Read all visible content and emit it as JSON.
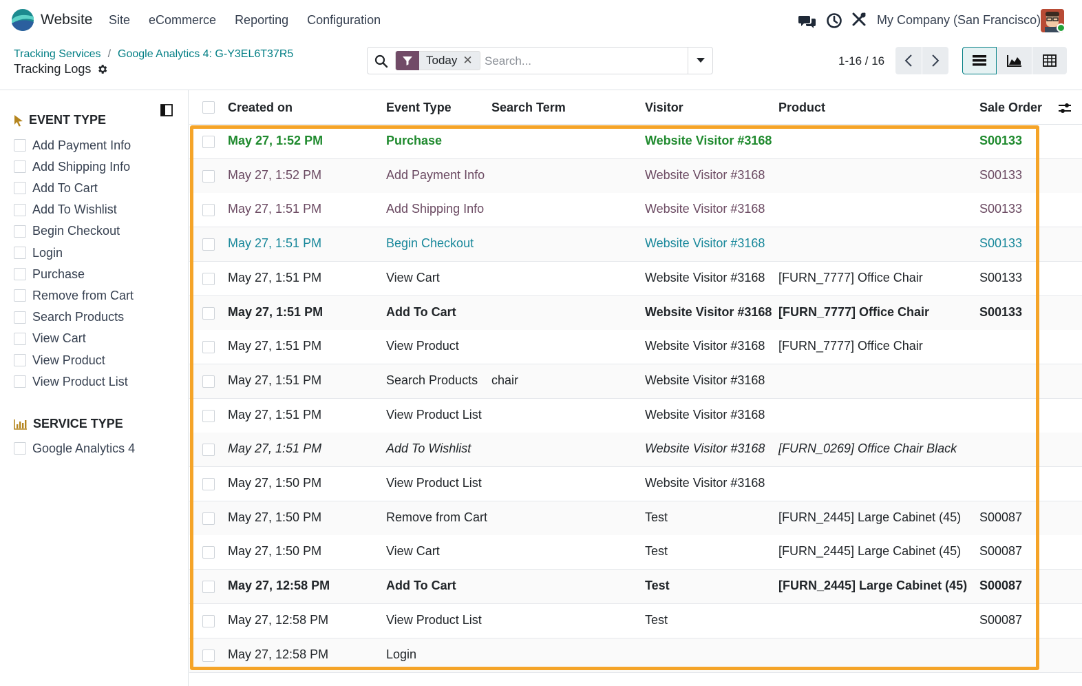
{
  "navbar": {
    "app_name": "Website",
    "menu": [
      "Site",
      "eCommerce",
      "Reporting",
      "Configuration"
    ],
    "company": "My Company (San Francisco)",
    "icons": [
      "chat-icon",
      "clock-icon",
      "tools-icon"
    ]
  },
  "breadcrumb": {
    "items": [
      "Tracking Services",
      "Google Analytics 4: G-Y3EL6T37R5"
    ],
    "separator": "/",
    "title": "Tracking Logs"
  },
  "search": {
    "facet_label": "Today",
    "facet_close": "✕",
    "placeholder": "Search..."
  },
  "pager": {
    "label": "1-16 / 16"
  },
  "colors": {
    "accent": "#017e84",
    "brand": "#714b67",
    "highlight": "#f5a428"
  },
  "sidebar": {
    "event_type": {
      "title": "EVENT TYPE",
      "items": [
        "Add Payment Info",
        "Add Shipping Info",
        "Add To Cart",
        "Add To Wishlist",
        "Begin Checkout",
        "Login",
        "Purchase",
        "Remove from Cart",
        "Search Products",
        "View Cart",
        "View Product",
        "View Product List"
      ]
    },
    "service_type": {
      "title": "SERVICE TYPE",
      "items": [
        "Google Analytics 4"
      ]
    }
  },
  "table": {
    "columns": [
      "Created on",
      "Event Type",
      "Search Term",
      "Visitor",
      "Product",
      "Sale Order"
    ],
    "rows": [
      {
        "date": "May 27, 1:52 PM",
        "event": "Purchase",
        "term": "",
        "visitor": "Website Visitor #3168",
        "product": "",
        "order": "S00133",
        "style": "purchase"
      },
      {
        "date": "May 27, 1:52 PM",
        "event": "Add Payment Info",
        "term": "",
        "visitor": "Website Visitor #3168",
        "product": "",
        "order": "S00133",
        "style": "muted"
      },
      {
        "date": "May 27, 1:51 PM",
        "event": "Add Shipping Info",
        "term": "",
        "visitor": "Website Visitor #3168",
        "product": "",
        "order": "S00133",
        "style": "muted"
      },
      {
        "date": "May 27, 1:51 PM",
        "event": "Begin Checkout",
        "term": "",
        "visitor": "Website Visitor #3168",
        "product": "",
        "order": "S00133",
        "style": "info"
      },
      {
        "date": "May 27, 1:51 PM",
        "event": "View Cart",
        "term": "",
        "visitor": "Website Visitor #3168",
        "product": "[FURN_7777] Office Chair",
        "order": "S00133",
        "style": "normal"
      },
      {
        "date": "May 27, 1:51 PM",
        "event": "Add To Cart",
        "term": "",
        "visitor": "Website Visitor #3168",
        "product": "[FURN_7777] Office Chair",
        "order": "S00133",
        "style": "bold"
      },
      {
        "date": "May 27, 1:51 PM",
        "event": "View Product",
        "term": "",
        "visitor": "Website Visitor #3168",
        "product": "[FURN_7777] Office Chair",
        "order": "",
        "style": "normal"
      },
      {
        "date": "May 27, 1:51 PM",
        "event": "Search Products",
        "term": "chair",
        "visitor": "Website Visitor #3168",
        "product": "",
        "order": "",
        "style": "normal"
      },
      {
        "date": "May 27, 1:51 PM",
        "event": "View Product List",
        "term": "",
        "visitor": "Website Visitor #3168",
        "product": "",
        "order": "",
        "style": "normal"
      },
      {
        "date": "May 27, 1:51 PM",
        "event": "Add To Wishlist",
        "term": "",
        "visitor": "Website Visitor #3168",
        "product": "[FURN_0269] Office Chair Black",
        "order": "",
        "style": "italic"
      },
      {
        "date": "May 27, 1:50 PM",
        "event": "View Product List",
        "term": "",
        "visitor": "Website Visitor #3168",
        "product": "",
        "order": "",
        "style": "normal"
      },
      {
        "date": "May 27, 1:50 PM",
        "event": "Remove from Cart",
        "term": "",
        "visitor": "Test",
        "product": "[FURN_2445] Large Cabinet (45)",
        "order": "S00087",
        "style": "normal"
      },
      {
        "date": "May 27, 1:50 PM",
        "event": "View Cart",
        "term": "",
        "visitor": "Test",
        "product": "[FURN_2445] Large Cabinet (45)",
        "order": "S00087",
        "style": "normal"
      },
      {
        "date": "May 27, 12:58 PM",
        "event": "Add To Cart",
        "term": "",
        "visitor": "Test",
        "product": "[FURN_2445] Large Cabinet (45)",
        "order": "S00087",
        "style": "bold"
      },
      {
        "date": "May 27, 12:58 PM",
        "event": "View Product List",
        "term": "",
        "visitor": "Test",
        "product": "",
        "order": "S00087",
        "style": "normal"
      },
      {
        "date": "May 27, 12:58 PM",
        "event": "Login",
        "term": "",
        "visitor": "",
        "product": "",
        "order": "",
        "style": "normal"
      }
    ]
  }
}
